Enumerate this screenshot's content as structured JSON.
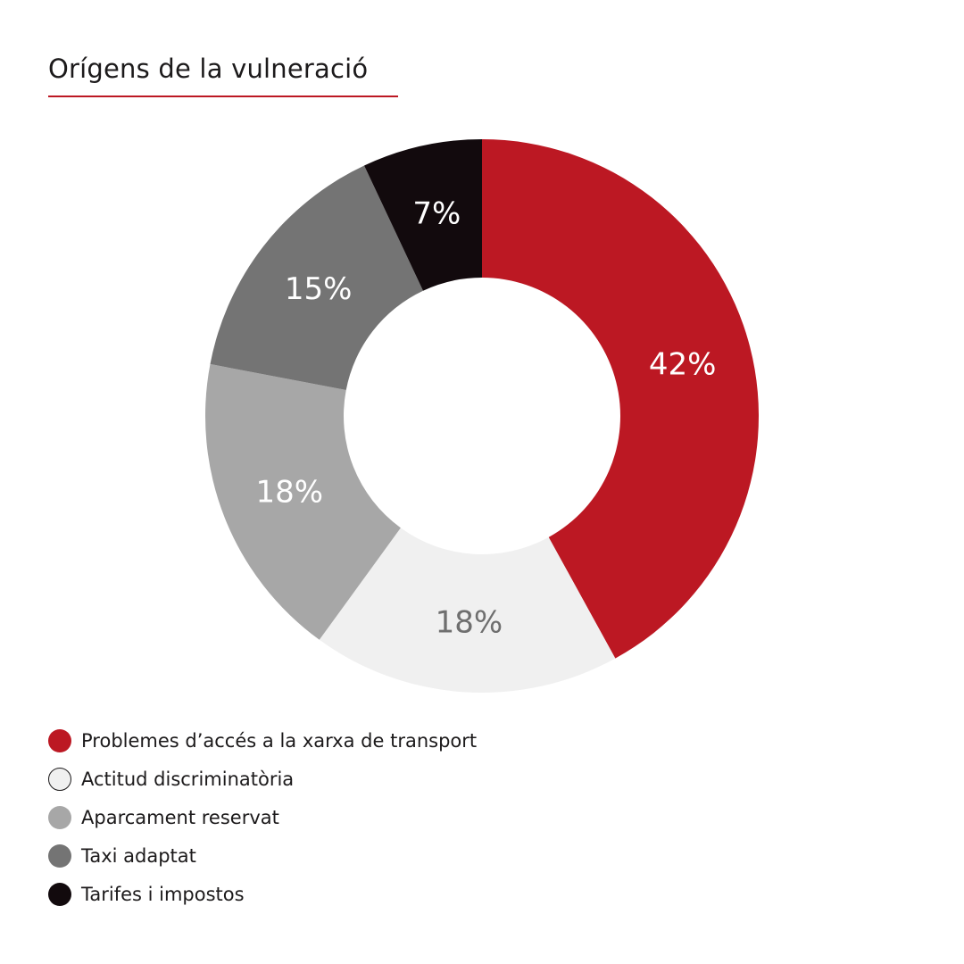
{
  "chart_data": {
    "type": "pie",
    "title": "Orígens de la vulneració",
    "donut": true,
    "start_angle_deg": 0,
    "direction": "clockwise",
    "legend_position": "bottom-left",
    "accent_color": "#bc1823",
    "slices": [
      {
        "name": "Problemes d’accés a la xarxa de transport",
        "value": 42,
        "label": "42%",
        "color": "#bc1823",
        "label_color": "#ffffff"
      },
      {
        "name": "Actitud discriminatòria",
        "value": 18,
        "label": "18%",
        "color": "#f0f0f0",
        "label_color": "#6f6f6f"
      },
      {
        "name": "Aparcament reservat",
        "value": 18,
        "label": "18%",
        "color": "#a7a7a7",
        "label_color": "#ffffff"
      },
      {
        "name": "Taxi adaptat",
        "value": 15,
        "label": "15%",
        "color": "#747474",
        "label_color": "#ffffff"
      },
      {
        "name": "Tarifes i impostos",
        "value": 7,
        "label": "7%",
        "color": "#120a0d",
        "label_color": "#ffffff"
      }
    ]
  }
}
